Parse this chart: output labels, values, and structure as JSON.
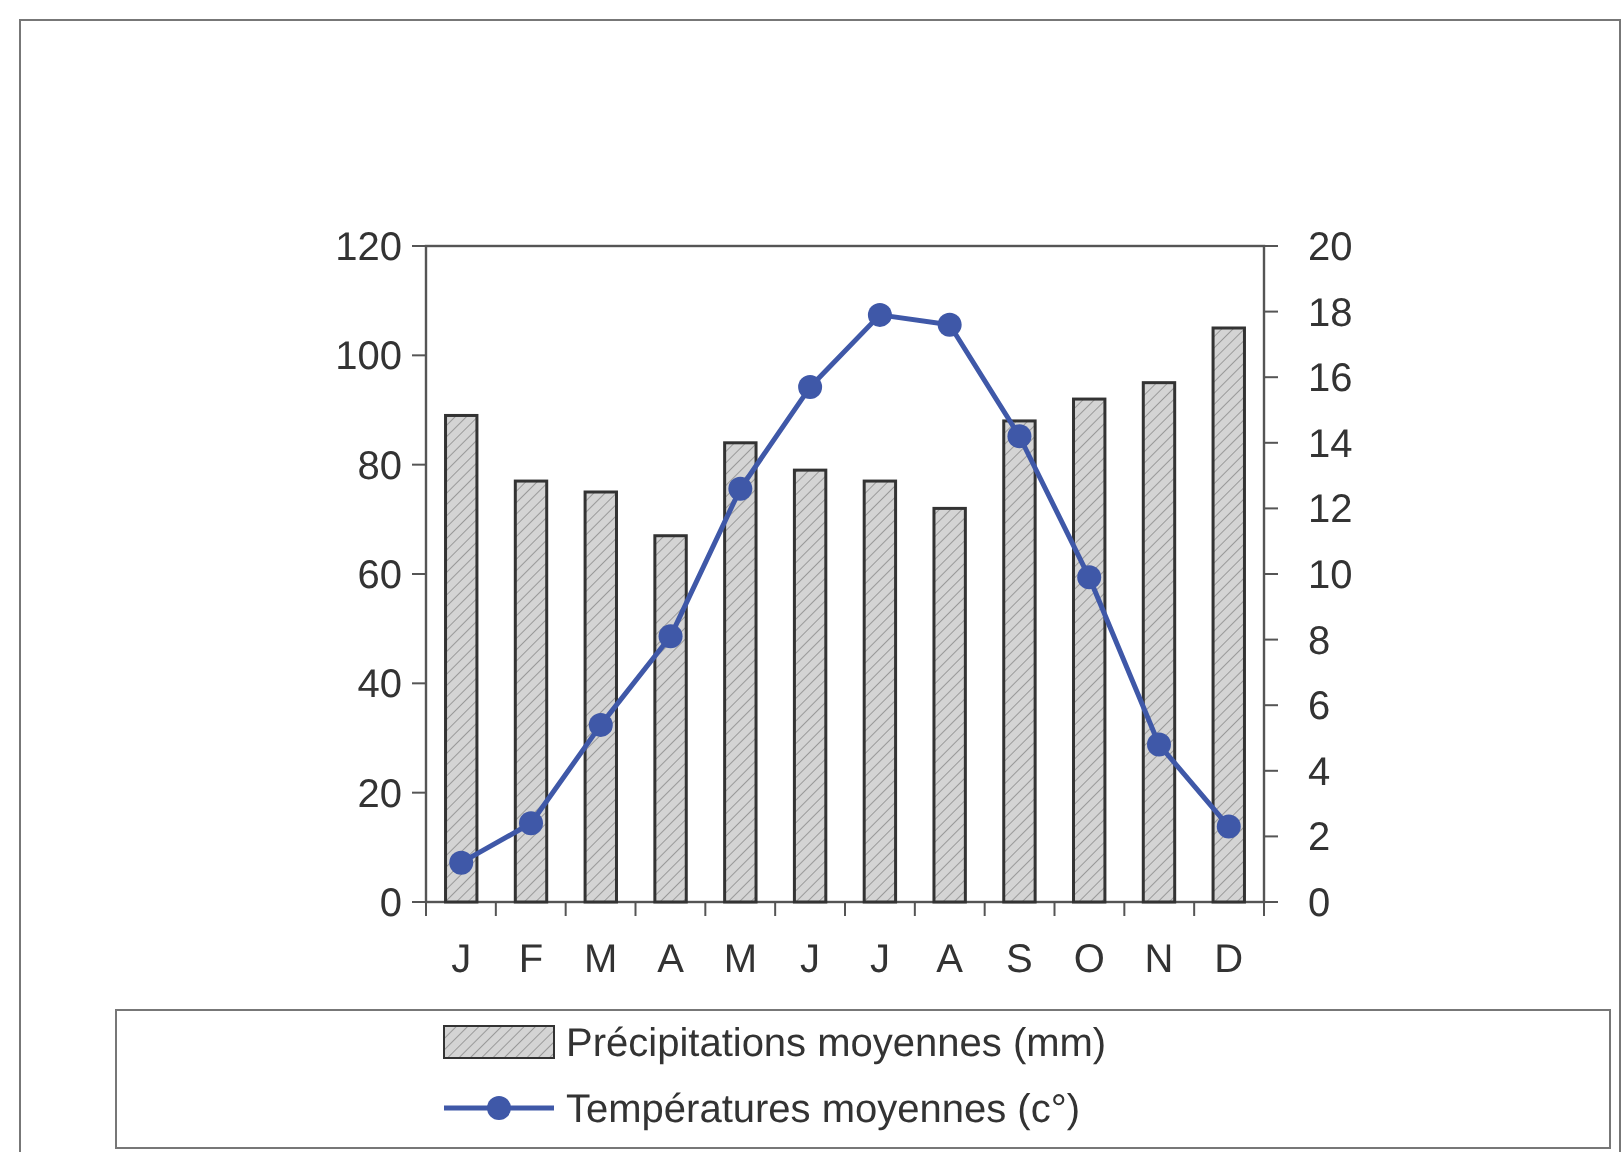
{
  "chart_data": {
    "type": "bar",
    "categories": [
      "J",
      "F",
      "M",
      "A",
      "M",
      "J",
      "J",
      "A",
      "S",
      "O",
      "N",
      "D"
    ],
    "series": [
      {
        "name": "Précipitations moyennes (mm)",
        "color": "#d4d4d4",
        "values": [
          89,
          77,
          75,
          67,
          84,
          79,
          77,
          72,
          88,
          92,
          95,
          105
        ]
      },
      {
        "name": "Températures moyennes (c°)",
        "type": "line",
        "axis": "y2",
        "color": "#3f58a8",
        "values": [
          1.2,
          2.4,
          5.4,
          8.1,
          12.6,
          15.7,
          17.9,
          17.6,
          14.2,
          9.9,
          4.8,
          2.3
        ]
      }
    ],
    "ylim": [
      0,
      120
    ],
    "yticks": [
      0,
      20,
      40,
      60,
      80,
      100,
      120
    ],
    "y2lim": [
      0,
      20
    ],
    "y2ticks": [
      0,
      2,
      4,
      6,
      8,
      10,
      12,
      14,
      16,
      18,
      20
    ],
    "marker": "circle",
    "legend": "bottom",
    "grid": false
  }
}
